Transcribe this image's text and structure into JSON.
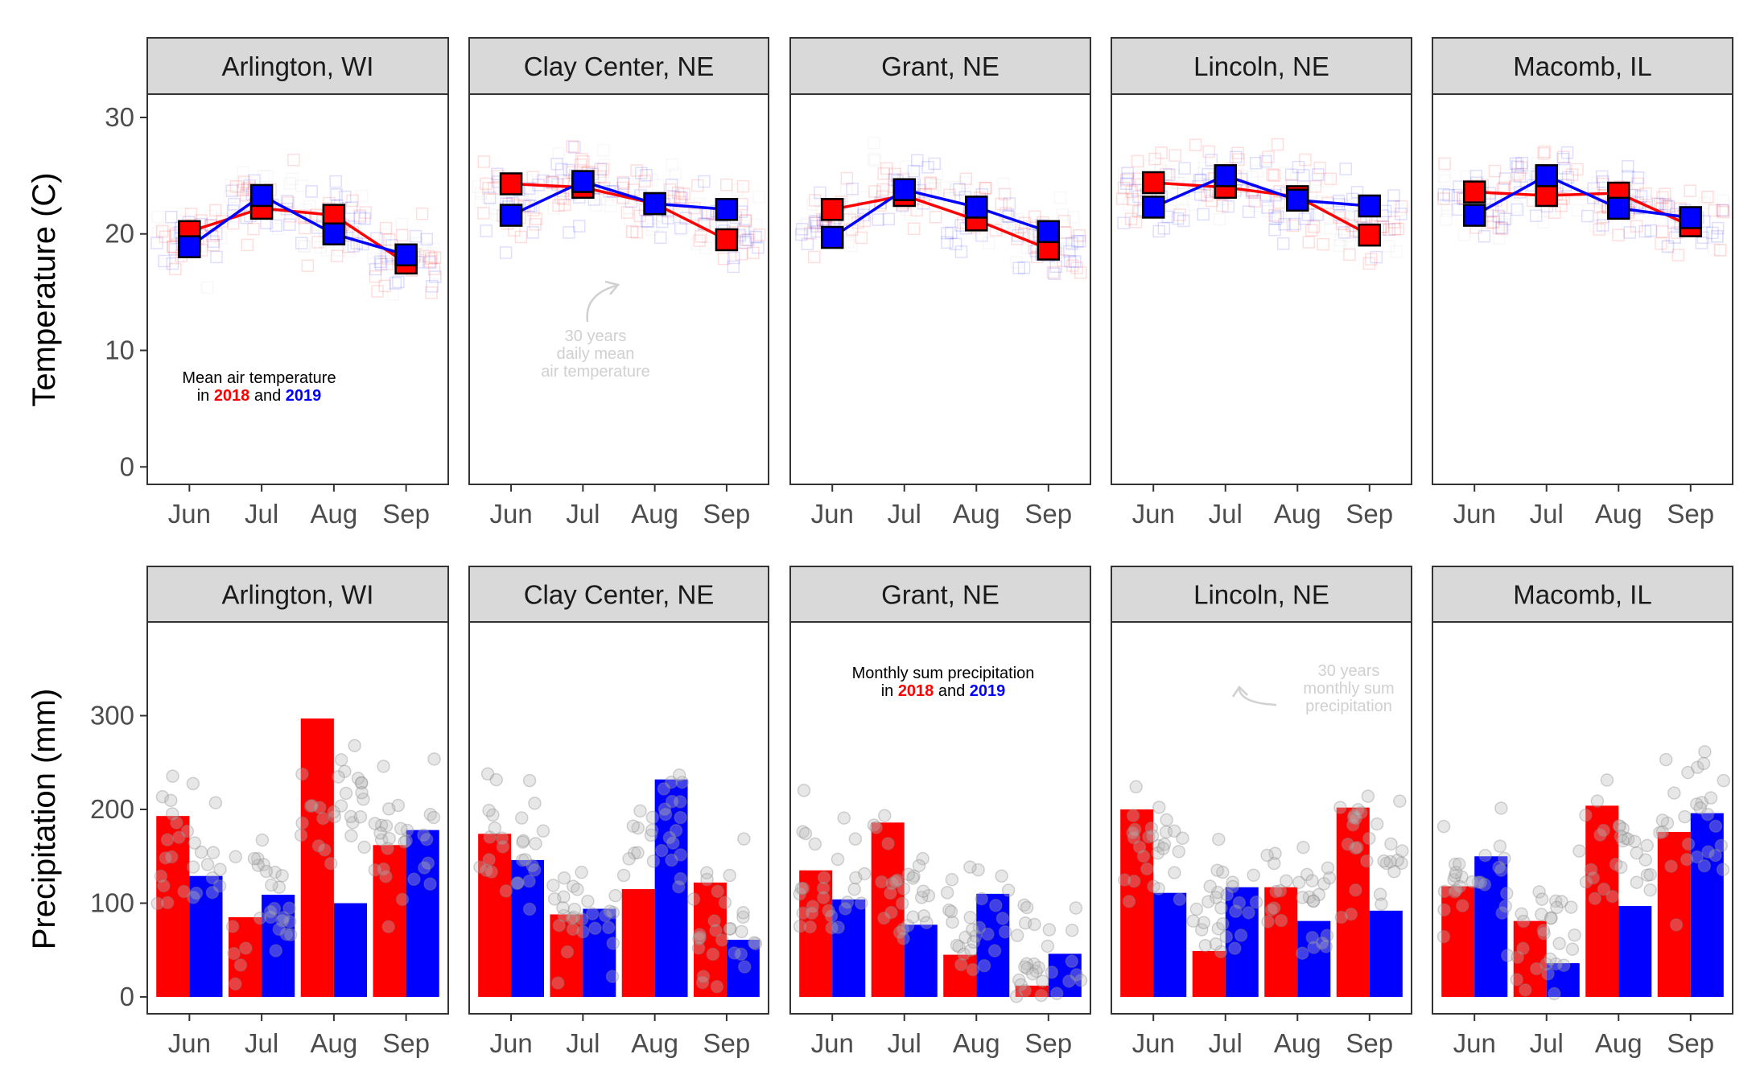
{
  "chart_data": [
    {
      "type": "line",
      "panel_group": "temperature",
      "ylabel": "Temperature (C)",
      "ylim": [
        -1.5,
        32
      ],
      "yticks": [
        0,
        10,
        20,
        30
      ],
      "categories": [
        "Jun",
        "Jul",
        "Aug",
        "Sep"
      ],
      "colors": {
        "2018": "#ff0000",
        "2019": "#0000ff",
        "history": "#cccccc"
      },
      "annotation": {
        "line1": "Mean air temperature",
        "in": "in",
        "y2018": "2018",
        "and": "and",
        "y2019": "2019"
      },
      "history_note": [
        "30 years",
        "daily mean",
        "air temperature"
      ],
      "facets": [
        {
          "name": "Arlington, WI",
          "series": [
            {
              "name": "2018",
              "values": [
                20.2,
                22.2,
                21.6,
                17.5
              ]
            },
            {
              "name": "2019",
              "values": [
                18.9,
                23.3,
                20.0,
                18.2
              ]
            }
          ]
        },
        {
          "name": "Clay Center, NE",
          "series": [
            {
              "name": "2018",
              "values": [
                24.3,
                24.0,
                22.6,
                19.5
              ]
            },
            {
              "name": "2019",
              "values": [
                21.6,
                24.5,
                22.6,
                22.1
              ]
            }
          ]
        },
        {
          "name": "Grant, NE",
          "series": [
            {
              "name": "2018",
              "values": [
                22.1,
                23.3,
                21.2,
                18.7
              ]
            },
            {
              "name": "2019",
              "values": [
                19.7,
                23.8,
                22.3,
                20.2
              ]
            }
          ]
        },
        {
          "name": "Lincoln, NE",
          "series": [
            {
              "name": "2018",
              "values": [
                24.4,
                24.0,
                23.2,
                19.9
              ]
            },
            {
              "name": "2019",
              "values": [
                22.3,
                25.0,
                22.9,
                22.4
              ]
            }
          ]
        },
        {
          "name": "Macomb, IL",
          "series": [
            {
              "name": "2018",
              "values": [
                23.6,
                23.3,
                23.5,
                20.7
              ]
            },
            {
              "name": "2019",
              "values": [
                21.6,
                25.0,
                22.2,
                21.4
              ]
            }
          ]
        }
      ]
    },
    {
      "type": "bar",
      "panel_group": "precipitation",
      "ylabel": "Precipitation (mm)",
      "ylim": [
        -18,
        400
      ],
      "yticks": [
        0,
        100,
        200,
        300
      ],
      "categories": [
        "Jun",
        "Jul",
        "Aug",
        "Sep"
      ],
      "colors": {
        "2018": "#ff0000",
        "2019": "#0000ff",
        "history": "#bbbbbb"
      },
      "annotation": {
        "line1": "Monthly sum precipitation",
        "in": "in",
        "y2018": "2018",
        "and": "and",
        "y2019": "2019"
      },
      "history_note": [
        "30 years",
        "monthly sum",
        "precipitation"
      ],
      "facets": [
        {
          "name": "Arlington, WI",
          "series": [
            {
              "name": "2018",
              "values": [
                193,
                85,
                297,
                162
              ]
            },
            {
              "name": "2019",
              "values": [
                129,
                109,
                100,
                178
              ]
            }
          ]
        },
        {
          "name": "Clay Center, NE",
          "series": [
            {
              "name": "2018",
              "values": [
                174,
                88,
                115,
                122
              ]
            },
            {
              "name": "2019",
              "values": [
                146,
                94,
                232,
                61
              ]
            }
          ]
        },
        {
          "name": "Grant, NE",
          "series": [
            {
              "name": "2018",
              "values": [
                135,
                186,
                45,
                12
              ]
            },
            {
              "name": "2019",
              "values": [
                104,
                77,
                110,
                46
              ]
            }
          ]
        },
        {
          "name": "Lincoln, NE",
          "series": [
            {
              "name": "2018",
              "values": [
                200,
                49,
                117,
                202
              ]
            },
            {
              "name": "2019",
              "values": [
                111,
                117,
                81,
                92
              ]
            }
          ]
        },
        {
          "name": "Macomb, IL",
          "series": [
            {
              "name": "2018",
              "values": [
                118,
                81,
                204,
                176
              ]
            },
            {
              "name": "2019",
              "values": [
                150,
                36,
                97,
                196
              ]
            }
          ]
        }
      ]
    }
  ]
}
